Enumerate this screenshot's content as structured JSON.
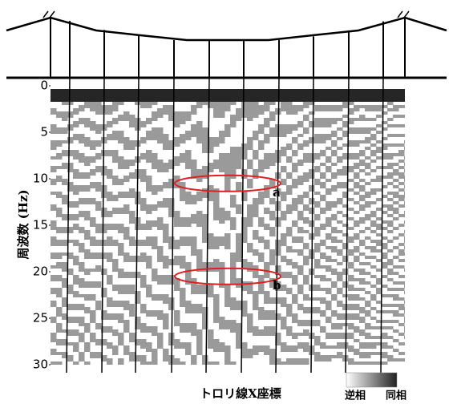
{
  "chart_data": {
    "type": "heatmap",
    "y_label": "周波数 (Hz)",
    "x_label": "トロリ線X座標",
    "ylim": [
      0,
      30
    ],
    "yticks": [
      0,
      5,
      10,
      15,
      20,
      25,
      30
    ],
    "colorbar_labels": [
      "逆相",
      "同相"
    ],
    "annotations": [
      {
        "label": "a",
        "y": 10.5
      },
      {
        "label": "b",
        "y": 20.5
      }
    ]
  }
}
